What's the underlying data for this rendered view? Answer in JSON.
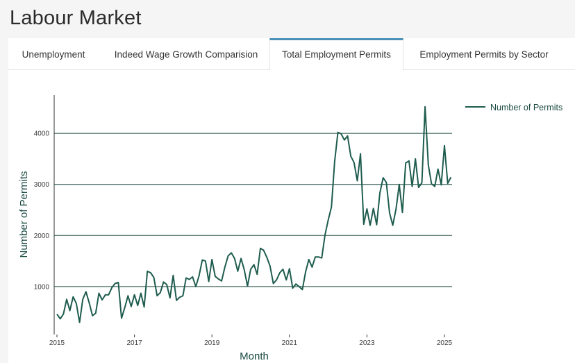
{
  "page": {
    "title": "Labour Market"
  },
  "tabs": [
    {
      "label": "Unemployment",
      "active": false
    },
    {
      "label": "Indeed Wage Growth Comparision",
      "active": false
    },
    {
      "label": "Total Employment Permits",
      "active": true
    },
    {
      "label": "Employment Permits by Sector",
      "active": false
    }
  ],
  "chart_data": {
    "type": "line",
    "xlabel": "Month",
    "ylabel": "Number of Permits",
    "x_ticks": [
      "2015",
      "2017",
      "2019",
      "2021",
      "2023",
      "2025"
    ],
    "y_ticks": [
      "1000",
      "2000",
      "3000",
      "4000"
    ],
    "xlim": [
      "2015-01",
      "2025-04"
    ],
    "ylim": [
      0,
      4700
    ],
    "grid": "horizontal",
    "legend_position": "top-right",
    "line_color": "#1e5c4e",
    "x": [
      "2015-01",
      "2015-02",
      "2015-03",
      "2015-04",
      "2015-05",
      "2015-06",
      "2015-07",
      "2015-08",
      "2015-09",
      "2015-10",
      "2015-11",
      "2015-12",
      "2016-01",
      "2016-02",
      "2016-03",
      "2016-04",
      "2016-05",
      "2016-06",
      "2016-07",
      "2016-08",
      "2016-09",
      "2016-10",
      "2016-11",
      "2016-12",
      "2017-01",
      "2017-02",
      "2017-03",
      "2017-04",
      "2017-05",
      "2017-06",
      "2017-07",
      "2017-08",
      "2017-09",
      "2017-10",
      "2017-11",
      "2017-12",
      "2018-01",
      "2018-02",
      "2018-03",
      "2018-04",
      "2018-05",
      "2018-06",
      "2018-07",
      "2018-08",
      "2018-09",
      "2018-10",
      "2018-11",
      "2018-12",
      "2019-01",
      "2019-02",
      "2019-03",
      "2019-04",
      "2019-05",
      "2019-06",
      "2019-07",
      "2019-08",
      "2019-09",
      "2019-10",
      "2019-11",
      "2019-12",
      "2020-01",
      "2020-02",
      "2020-03",
      "2020-04",
      "2020-05",
      "2020-06",
      "2020-07",
      "2020-08",
      "2020-09",
      "2020-10",
      "2020-11",
      "2020-12",
      "2021-01",
      "2021-02",
      "2021-03",
      "2021-04",
      "2021-05",
      "2021-06",
      "2021-07",
      "2021-08",
      "2021-09",
      "2021-10",
      "2021-11",
      "2021-12",
      "2022-01",
      "2022-02",
      "2022-03",
      "2022-04",
      "2022-05",
      "2022-06",
      "2022-07",
      "2022-08",
      "2022-09",
      "2022-10",
      "2022-11",
      "2022-12",
      "2023-01",
      "2023-02",
      "2023-03",
      "2023-04",
      "2023-05",
      "2023-06",
      "2023-07",
      "2023-08",
      "2023-09",
      "2023-10",
      "2023-11",
      "2023-12",
      "2024-01",
      "2024-02",
      "2024-03",
      "2024-04",
      "2024-05",
      "2024-06",
      "2024-07",
      "2024-08",
      "2024-09",
      "2024-10",
      "2024-11",
      "2024-12",
      "2025-01",
      "2025-02",
      "2025-03"
    ],
    "series": [
      {
        "name": "Number of Permits",
        "values": [
          460,
          370,
          460,
          750,
          530,
          800,
          670,
          300,
          750,
          900,
          680,
          430,
          480,
          870,
          740,
          840,
          840,
          980,
          1060,
          1080,
          380,
          590,
          820,
          610,
          840,
          630,
          870,
          600,
          1300,
          1270,
          1180,
          820,
          880,
          1090,
          1040,
          780,
          1220,
          730,
          790,
          820,
          1170,
          1140,
          1190,
          1000,
          1210,
          1520,
          1500,
          1100,
          1530,
          1200,
          1150,
          1110,
          1380,
          1600,
          1660,
          1550,
          1300,
          1550,
          1330,
          1010,
          1340,
          1430,
          1240,
          1750,
          1710,
          1570,
          1400,
          1060,
          1130,
          1270,
          1340,
          1130,
          1350,
          970,
          1050,
          1000,
          940,
          1290,
          1530,
          1380,
          1580,
          1580,
          1560,
          2010,
          2300,
          2560,
          3450,
          4020,
          3990,
          3870,
          3950,
          3550,
          3430,
          3070,
          3600,
          2220,
          2520,
          2200,
          2530,
          2210,
          2830,
          3130,
          3040,
          2440,
          2200,
          2520,
          3000,
          2450,
          3420,
          3460,
          2960,
          3500,
          2940,
          3030,
          4520,
          3380,
          3010,
          2960,
          3300,
          2990,
          3760,
          3020,
          3140
        ]
      }
    ]
  }
}
